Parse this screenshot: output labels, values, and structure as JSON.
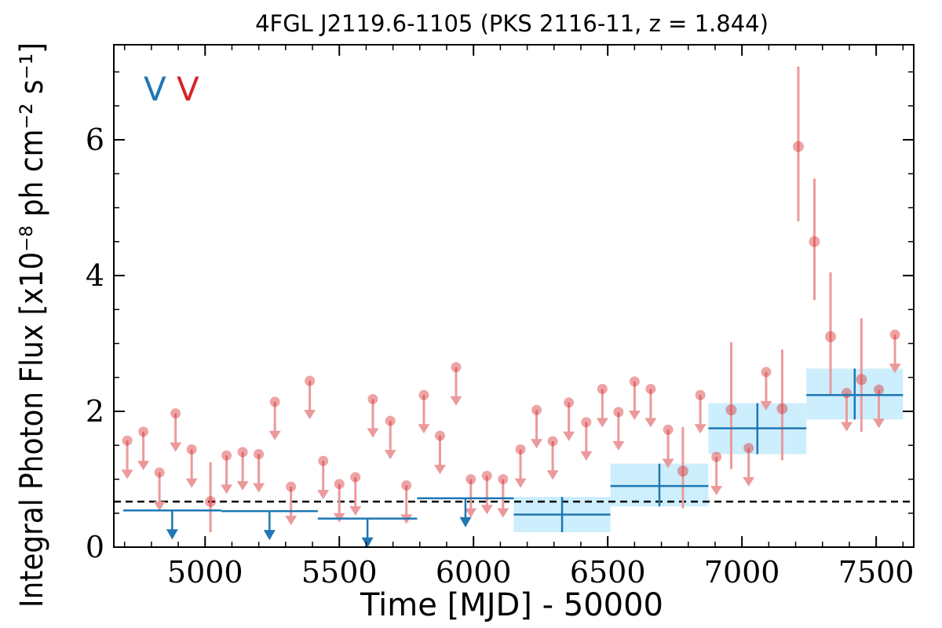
{
  "chart_data": {
    "type": "scatter",
    "title": "4FGL J2119.6-1105 (PKS 2116-11, z = 1.844)",
    "xlabel": "Time [MJD] - 50000",
    "ylabel": "Integral Photon Flux [x10⁻⁸ ph cm⁻² s⁻¹]",
    "xlim": [
      4660,
      7640
    ],
    "ylim": [
      0,
      7.4
    ],
    "xticks": [
      "5000",
      "5500",
      "6000",
      "6500",
      "7000",
      "7500"
    ],
    "yticks": [
      "0",
      "2",
      "4",
      "6"
    ],
    "legend_labels": [
      "V",
      "V"
    ],
    "legend_colors": [
      "#1f77b4",
      "#d62728"
    ],
    "reference_level": 0.67,
    "series": [
      {
        "marker": "point",
        "points": [
          {
            "x": 5020,
            "y": 0.67,
            "err": [
              0.45,
              0.58
            ]
          },
          {
            "x": 6780,
            "y": 1.12,
            "err": [
              0.55,
              0.65
            ]
          },
          {
            "x": 6960,
            "y": 2.02,
            "err": [
              0.87,
              1.0
            ]
          },
          {
            "x": 7150,
            "y": 2.04,
            "err": [
              0.76,
              0.87
            ]
          },
          {
            "x": 7210,
            "y": 5.9,
            "err": [
              1.1,
              1.18
            ]
          },
          {
            "x": 7270,
            "y": 4.5,
            "err": [
              0.86,
              0.93
            ]
          },
          {
            "x": 7330,
            "y": 3.1,
            "err": [
              0.85,
              0.95
            ]
          },
          {
            "x": 7445,
            "y": 2.47,
            "err": [
              0.77,
              0.9
            ]
          }
        ]
      },
      {
        "marker": "upper-limit",
        "values": [
          [
            4710,
            1.57
          ],
          [
            4770,
            1.7
          ],
          [
            4830,
            1.1
          ],
          [
            4890,
            1.97
          ],
          [
            4950,
            1.44
          ],
          [
            5080,
            1.35
          ],
          [
            5140,
            1.4
          ],
          [
            5200,
            1.37
          ],
          [
            5260,
            2.14
          ],
          [
            5320,
            0.89
          ],
          [
            5390,
            2.45
          ],
          [
            5440,
            1.27
          ],
          [
            5500,
            0.93
          ],
          [
            5560,
            1.03
          ],
          [
            5625,
            2.18
          ],
          [
            5690,
            1.86
          ],
          [
            5750,
            0.91
          ],
          [
            5815,
            2.24
          ],
          [
            5875,
            1.64
          ],
          [
            5935,
            2.65
          ],
          [
            5990,
            1.0
          ],
          [
            6050,
            1.05
          ],
          [
            6110,
            1.0
          ],
          [
            6175,
            1.44
          ],
          [
            6235,
            2.02
          ],
          [
            6295,
            1.56
          ],
          [
            6355,
            2.13
          ],
          [
            6420,
            1.84
          ],
          [
            6480,
            2.33
          ],
          [
            6540,
            1.99
          ],
          [
            6600,
            2.44
          ],
          [
            6660,
            2.33
          ],
          [
            6725,
            1.73
          ],
          [
            6845,
            2.24
          ],
          [
            6905,
            1.33
          ],
          [
            7025,
            1.46
          ],
          [
            7090,
            2.58
          ],
          [
            7390,
            2.27
          ],
          [
            7510,
            2.32
          ],
          [
            7570,
            3.13
          ]
        ]
      },
      {
        "marker": "bin",
        "bins": [
          {
            "xmin": 4695,
            "xmax": 5060,
            "y": 0.54,
            "upper_limit": true
          },
          {
            "xmin": 5060,
            "xmax": 5420,
            "y": 0.53,
            "upper_limit": true
          },
          {
            "xmin": 5420,
            "xmax": 5790,
            "y": 0.42,
            "upper_limit": true
          },
          {
            "xmin": 5790,
            "xmax": 6150,
            "y": 0.72,
            "upper_limit": true
          },
          {
            "xmin": 6150,
            "xmax": 6510,
            "y": 0.48,
            "err": [
              0.26,
              0.26
            ]
          },
          {
            "xmin": 6510,
            "xmax": 6875,
            "y": 0.9,
            "err": [
              0.3,
              0.33
            ]
          },
          {
            "xmin": 6875,
            "xmax": 7240,
            "y": 1.75,
            "err": [
              0.38,
              0.37
            ]
          },
          {
            "xmin": 7240,
            "xmax": 7600,
            "y": 2.24,
            "err": [
              0.36,
              0.39
            ]
          }
        ]
      }
    ]
  }
}
